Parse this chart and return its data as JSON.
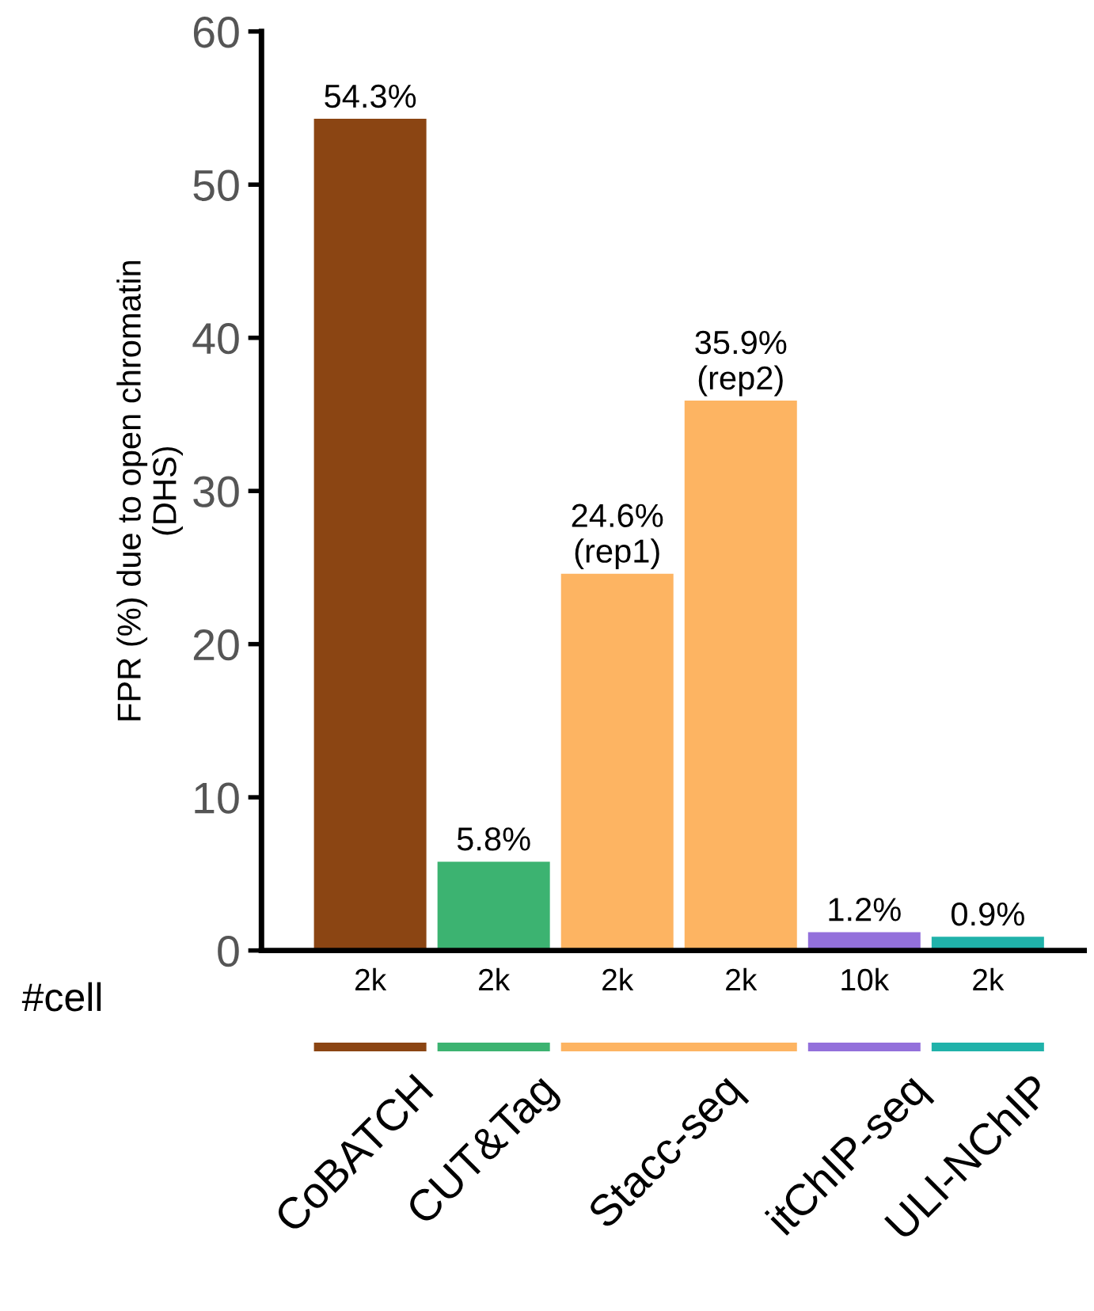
{
  "chart_data": {
    "type": "bar",
    "ylabel": "FPR (%) due to open chromatin\n(DHS)",
    "categories": [
      "2k",
      "2k",
      "2k",
      "2k",
      "10k",
      "2k"
    ],
    "values": [
      54.3,
      5.8,
      24.6,
      35.9,
      1.2,
      0.9
    ],
    "colors": [
      "#8b4513",
      "#3cb371",
      "#fdb462",
      "#fdb462",
      "#9370db",
      "#20b2aa"
    ],
    "value_labels": [
      "54.3%",
      "5.8%",
      "24.6%\n(rep1)",
      "35.9%\n(rep2)",
      "1.2%",
      "0.9%"
    ],
    "ylim": [
      0,
      60
    ],
    "yticks": [
      0,
      10,
      20,
      30,
      40,
      50,
      60
    ],
    "annotations": [
      "#cell",
      "CoBATCH",
      "CUT&Tag",
      "Stacc-seq",
      "itChIP-seq",
      "ULI-NChIP"
    ],
    "grid": false,
    "legend": false
  }
}
